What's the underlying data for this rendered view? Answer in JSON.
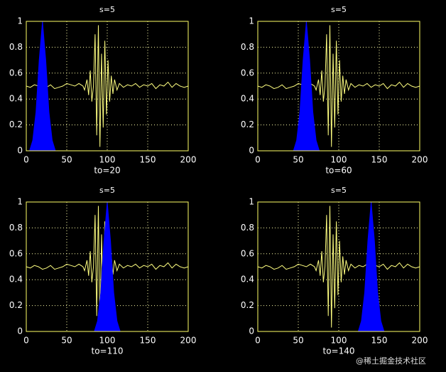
{
  "chart_data": [
    {
      "type": "line",
      "title": "s=5",
      "xlabel": "to=20",
      "xlim": [
        0,
        200
      ],
      "ylim": [
        0,
        1
      ],
      "xticks": [
        0,
        50,
        100,
        150,
        200
      ],
      "yticks": [
        0,
        0.2,
        0.4,
        0.6,
        0.8,
        1
      ],
      "grid": true,
      "series": [
        {
          "color": "#ffff80",
          "fill": false,
          "x": [
            0,
            5,
            10,
            15,
            20,
            25,
            30,
            35,
            40,
            45,
            50,
            55,
            60,
            65,
            70,
            72,
            75,
            77,
            79,
            81,
            83,
            85,
            87,
            89,
            91,
            93,
            95,
            97,
            99,
            101,
            103,
            105,
            107,
            109,
            112,
            115,
            120,
            125,
            130,
            135,
            140,
            145,
            150,
            155,
            160,
            165,
            170,
            175,
            180,
            185,
            190,
            195,
            200
          ],
          "values": [
            0.5,
            0.49,
            0.51,
            0.5,
            0.48,
            0.49,
            0.51,
            0.48,
            0.49,
            0.5,
            0.52,
            0.51,
            0.5,
            0.52,
            0.5,
            0.47,
            0.55,
            0.43,
            0.62,
            0.38,
            0.5,
            0.9,
            0.12,
            0.97,
            0.03,
            0.75,
            0.18,
            0.85,
            0.28,
            0.7,
            0.38,
            0.58,
            0.44,
            0.55,
            0.47,
            0.52,
            0.49,
            0.51,
            0.5,
            0.52,
            0.49,
            0.51,
            0.5,
            0.52,
            0.48,
            0.51,
            0.5,
            0.53,
            0.49,
            0.52,
            0.5,
            0.49,
            0.5
          ]
        },
        {
          "color": "#0000ff",
          "fill": true,
          "x": [
            4,
            8,
            12,
            16,
            20,
            24,
            28,
            32,
            36
          ],
          "values": [
            0,
            0.08,
            0.3,
            0.7,
            1,
            0.7,
            0.3,
            0.08,
            0
          ]
        }
      ]
    },
    {
      "type": "line",
      "title": "s=5",
      "xlabel": "to=60",
      "xlim": [
        0,
        200
      ],
      "ylim": [
        0,
        1
      ],
      "xticks": [
        0,
        50,
        100,
        150,
        200
      ],
      "yticks": [
        0,
        0.2,
        0.4,
        0.6,
        0.8,
        1
      ],
      "grid": true,
      "series": [
        {
          "color": "#ffff80",
          "fill": false,
          "x": [
            0,
            5,
            10,
            15,
            20,
            25,
            30,
            35,
            40,
            45,
            50,
            55,
            60,
            65,
            70,
            72,
            75,
            77,
            79,
            81,
            83,
            85,
            87,
            89,
            91,
            93,
            95,
            97,
            99,
            101,
            103,
            105,
            107,
            109,
            112,
            115,
            120,
            125,
            130,
            135,
            140,
            145,
            150,
            155,
            160,
            165,
            170,
            175,
            180,
            185,
            190,
            195,
            200
          ],
          "values": [
            0.5,
            0.49,
            0.51,
            0.5,
            0.48,
            0.49,
            0.51,
            0.48,
            0.49,
            0.5,
            0.52,
            0.51,
            0.5,
            0.52,
            0.5,
            0.47,
            0.55,
            0.43,
            0.62,
            0.38,
            0.5,
            0.9,
            0.12,
            0.97,
            0.03,
            0.75,
            0.18,
            0.85,
            0.28,
            0.7,
            0.38,
            0.58,
            0.44,
            0.55,
            0.47,
            0.52,
            0.49,
            0.51,
            0.5,
            0.52,
            0.49,
            0.51,
            0.5,
            0.52,
            0.48,
            0.51,
            0.5,
            0.53,
            0.49,
            0.52,
            0.5,
            0.49,
            0.5
          ]
        },
        {
          "color": "#0000ff",
          "fill": true,
          "x": [
            44,
            48,
            52,
            56,
            60,
            64,
            68,
            72,
            76
          ],
          "values": [
            0,
            0.08,
            0.3,
            0.7,
            1,
            0.7,
            0.3,
            0.08,
            0
          ]
        }
      ]
    },
    {
      "type": "line",
      "title": "s=5",
      "xlabel": "to=110",
      "xlim": [
        0,
        200
      ],
      "ylim": [
        0,
        1
      ],
      "xticks": [
        0,
        50,
        100,
        150,
        200
      ],
      "yticks": [
        0,
        0.2,
        0.4,
        0.6,
        0.8,
        1
      ],
      "grid": true,
      "series": [
        {
          "color": "#ffff80",
          "fill": false,
          "x": [
            0,
            5,
            10,
            15,
            20,
            25,
            30,
            35,
            40,
            45,
            50,
            55,
            60,
            65,
            70,
            72,
            75,
            77,
            79,
            81,
            83,
            85,
            87,
            89,
            91,
            93,
            95,
            97,
            99,
            101,
            103,
            105,
            107,
            109,
            112,
            115,
            120,
            125,
            130,
            135,
            140,
            145,
            150,
            155,
            160,
            165,
            170,
            175,
            180,
            185,
            190,
            195,
            200
          ],
          "values": [
            0.5,
            0.49,
            0.51,
            0.5,
            0.48,
            0.49,
            0.51,
            0.48,
            0.49,
            0.5,
            0.52,
            0.51,
            0.5,
            0.52,
            0.5,
            0.47,
            0.55,
            0.43,
            0.62,
            0.38,
            0.5,
            0.9,
            0.12,
            0.97,
            0.03,
            0.75,
            0.18,
            0.85,
            0.28,
            0.7,
            0.38,
            0.58,
            0.44,
            0.55,
            0.47,
            0.52,
            0.49,
            0.51,
            0.5,
            0.52,
            0.49,
            0.51,
            0.5,
            0.52,
            0.48,
            0.51,
            0.5,
            0.53,
            0.49,
            0.52,
            0.5,
            0.49,
            0.5
          ]
        },
        {
          "color": "#0000ff",
          "fill": true,
          "x": [
            84,
            88,
            92,
            96,
            100,
            104,
            108,
            112,
            116
          ],
          "values": [
            0,
            0.08,
            0.3,
            0.7,
            1,
            0.7,
            0.3,
            0.08,
            0
          ]
        }
      ]
    },
    {
      "type": "line",
      "title": "s=5",
      "xlabel": "to=140",
      "xlim": [
        0,
        200
      ],
      "ylim": [
        0,
        1
      ],
      "xticks": [
        0,
        50,
        100,
        150,
        200
      ],
      "yticks": [
        0,
        0.2,
        0.4,
        0.6,
        0.8,
        1
      ],
      "grid": true,
      "series": [
        {
          "color": "#ffff80",
          "fill": false,
          "x": [
            0,
            5,
            10,
            15,
            20,
            25,
            30,
            35,
            40,
            45,
            50,
            55,
            60,
            65,
            70,
            72,
            75,
            77,
            79,
            81,
            83,
            85,
            87,
            89,
            91,
            93,
            95,
            97,
            99,
            101,
            103,
            105,
            107,
            109,
            112,
            115,
            120,
            125,
            130,
            135,
            140,
            145,
            150,
            155,
            160,
            165,
            170,
            175,
            180,
            185,
            190,
            195,
            200
          ],
          "values": [
            0.5,
            0.49,
            0.51,
            0.5,
            0.48,
            0.49,
            0.51,
            0.48,
            0.49,
            0.5,
            0.52,
            0.51,
            0.5,
            0.52,
            0.5,
            0.47,
            0.55,
            0.43,
            0.62,
            0.38,
            0.5,
            0.9,
            0.12,
            0.97,
            0.03,
            0.75,
            0.18,
            0.85,
            0.28,
            0.7,
            0.38,
            0.58,
            0.44,
            0.55,
            0.47,
            0.52,
            0.49,
            0.51,
            0.5,
            0.52,
            0.49,
            0.51,
            0.5,
            0.52,
            0.48,
            0.51,
            0.5,
            0.53,
            0.49,
            0.52,
            0.5,
            0.49,
            0.5
          ]
        },
        {
          "color": "#0000ff",
          "fill": true,
          "x": [
            124,
            128,
            132,
            136,
            140,
            144,
            148,
            152,
            156
          ],
          "values": [
            0,
            0.08,
            0.3,
            0.7,
            1,
            0.7,
            0.3,
            0.08,
            0
          ]
        }
      ]
    }
  ],
  "watermark": "@稀土掘金技术社区"
}
